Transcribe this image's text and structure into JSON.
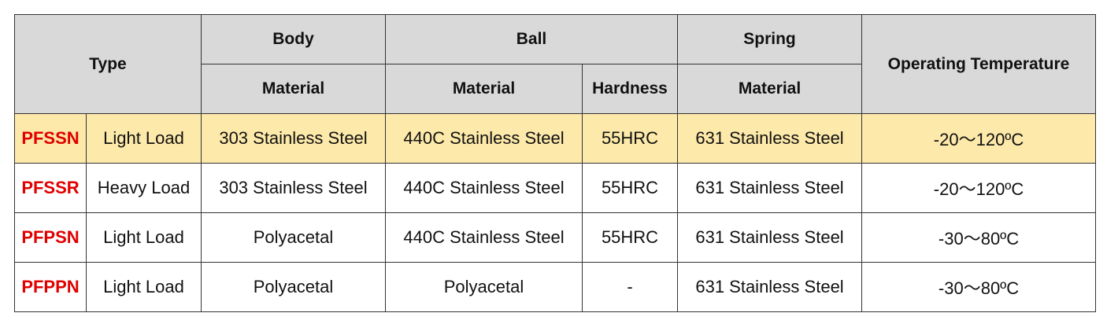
{
  "table": {
    "header": {
      "type": "Type",
      "body": "Body",
      "ball": "Ball",
      "spring": "Spring",
      "operating_temperature": "Operating Temperature",
      "sub": [
        "Material",
        "Material",
        "Hardness",
        "Material"
      ]
    },
    "rows": [
      [
        "PFSSN",
        "Light Load",
        "303 Stainless Steel",
        "440C Stainless Steel",
        "55HRC",
        "631 Stainless Steel",
        "-20～120ºC"
      ],
      [
        "PFSSR",
        "Heavy Load",
        "303 Stainless Steel",
        "440C Stainless Steel",
        "55HRC",
        "631 Stainless Steel",
        "-20～120ºC"
      ],
      [
        "PFPSN",
        "Light Load",
        "Polyacetal",
        "440C Stainless Steel",
        "55HRC",
        "631 Stainless Steel",
        "-30～80ºC"
      ],
      [
        "PFPPN",
        "Light Load",
        "Polyacetal",
        "Polyacetal",
        "-",
        "631 Stainless Steel",
        "-30～80ºC"
      ]
    ]
  }
}
